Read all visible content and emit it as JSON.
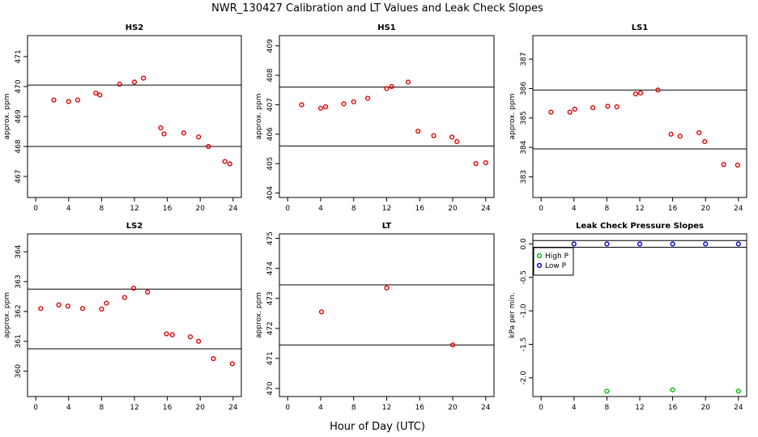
{
  "figure": {
    "title": "NWR_130427  Calibration and LT Values and Leak Check Slopes",
    "xlabel": "Hour of Day (UTC)"
  },
  "chart_data": [
    {
      "type": "scatter",
      "title": "HS2",
      "ylabel": "approx. ppm",
      "xlim": [
        -1,
        25
      ],
      "ylim": [
        466.3,
        471.7
      ],
      "xticks": [
        0,
        4,
        8,
        12,
        16,
        20,
        24
      ],
      "yticks": [
        467,
        468,
        469,
        470,
        471
      ],
      "hlines": [
        470.05,
        468.0
      ],
      "series": [
        {
          "name": "HS2",
          "color": "#dd0000",
          "x": [
            2.2,
            4.0,
            5.1,
            7.3,
            7.8,
            10.2,
            12.0,
            13.1,
            15.2,
            15.6,
            18.0,
            19.8,
            21.0,
            23.0,
            23.6
          ],
          "y": [
            469.55,
            469.5,
            469.55,
            469.78,
            469.72,
            470.08,
            470.15,
            470.28,
            468.62,
            468.42,
            468.45,
            468.32,
            468.0,
            467.5,
            467.42
          ]
        }
      ]
    },
    {
      "type": "scatter",
      "title": "HS1",
      "ylabel": "approx. ppm",
      "xlim": [
        -1,
        25
      ],
      "ylim": [
        403.85,
        409.35
      ],
      "xticks": [
        0,
        4,
        8,
        12,
        16,
        20,
        24
      ],
      "yticks": [
        404,
        405,
        406,
        407,
        408,
        409
      ],
      "hlines": [
        407.6,
        405.6
      ],
      "series": [
        {
          "name": "HS1",
          "color": "#dd0000",
          "x": [
            1.7,
            4.0,
            4.6,
            6.8,
            8.0,
            9.7,
            12.0,
            12.6,
            14.6,
            15.8,
            17.7,
            19.9,
            20.5,
            22.8,
            24.0
          ],
          "y": [
            407.0,
            406.88,
            406.93,
            407.03,
            407.1,
            407.22,
            407.55,
            407.62,
            407.77,
            406.1,
            405.95,
            405.9,
            405.75,
            405.0,
            405.03
          ]
        }
      ]
    },
    {
      "type": "scatter",
      "title": "LS1",
      "ylabel": "approx. ppm",
      "xlim": [
        -1,
        25
      ],
      "ylim": [
        382.3,
        387.8
      ],
      "xticks": [
        0,
        4,
        8,
        12,
        16,
        20,
        24
      ],
      "yticks": [
        383,
        384,
        385,
        386,
        387
      ],
      "hlines": [
        385.95,
        383.95
      ],
      "series": [
        {
          "name": "LS1",
          "color": "#dd0000",
          "x": [
            1.2,
            3.5,
            4.1,
            6.3,
            8.1,
            9.2,
            11.5,
            12.1,
            14.2,
            15.8,
            16.9,
            19.2,
            19.9,
            22.2,
            23.9
          ],
          "y": [
            385.2,
            385.2,
            385.3,
            385.35,
            385.4,
            385.38,
            385.82,
            385.85,
            385.95,
            384.45,
            384.38,
            384.5,
            384.2,
            383.42,
            383.4
          ]
        }
      ]
    },
    {
      "type": "scatter",
      "title": "LS2",
      "ylabel": "approx. ppm",
      "xlim": [
        -1,
        25
      ],
      "ylim": [
        359.15,
        364.6
      ],
      "xticks": [
        0,
        4,
        8,
        12,
        16,
        20,
        24
      ],
      "yticks": [
        360,
        361,
        362,
        363,
        364
      ],
      "hlines": [
        362.75,
        360.75
      ],
      "series": [
        {
          "name": "LS2",
          "color": "#dd0000",
          "x": [
            0.6,
            2.8,
            3.9,
            5.7,
            8.0,
            8.6,
            10.8,
            11.9,
            13.6,
            15.9,
            16.6,
            18.8,
            19.8,
            21.6,
            23.9
          ],
          "y": [
            362.1,
            362.22,
            362.18,
            362.1,
            362.08,
            362.28,
            362.47,
            362.78,
            362.65,
            361.25,
            361.22,
            361.15,
            361.0,
            360.42,
            360.25
          ]
        }
      ]
    },
    {
      "type": "scatter",
      "title": "LT",
      "ylabel": "approx. ppm",
      "xlim": [
        -1,
        25
      ],
      "ylim": [
        469.73,
        475.15
      ],
      "xticks": [
        0,
        4,
        8,
        12,
        16,
        20,
        24
      ],
      "yticks": [
        470,
        471,
        472,
        473,
        474,
        475
      ],
      "hlines": [
        473.45,
        471.45
      ],
      "series": [
        {
          "name": "LT",
          "color": "#dd0000",
          "x": [
            4.1,
            12.0,
            20.0
          ],
          "y": [
            472.55,
            473.35,
            471.45
          ]
        }
      ]
    },
    {
      "type": "scatter",
      "title": "Leak Check Pressure Slopes",
      "ylabel": "kPa per min.",
      "xlim": [
        -1,
        25
      ],
      "ylim": [
        -2.28,
        0.15
      ],
      "xticks": [
        0,
        4,
        8,
        12,
        16,
        20,
        24
      ],
      "yticks": [
        0.0,
        -0.5,
        -1.0,
        -1.5,
        -2.0
      ],
      "ytick_labels": [
        "0.0",
        "-0.5",
        "-1.0",
        "-1.5",
        "-2.0"
      ],
      "hlines": [
        0.05,
        -0.05
      ],
      "legend": "top-left",
      "series": [
        {
          "name": "High P",
          "color": "#00bb00",
          "x": [
            8.0,
            16.0,
            24.0
          ],
          "y": [
            -2.2,
            -2.18,
            -2.2
          ]
        },
        {
          "name": "Low P",
          "color": "#0000dd",
          "x": [
            4.0,
            8.0,
            12.0,
            16.0,
            20.0,
            24.0
          ],
          "y": [
            0.0,
            0.0,
            0.0,
            0.0,
            0.0,
            0.0
          ]
        }
      ]
    }
  ]
}
